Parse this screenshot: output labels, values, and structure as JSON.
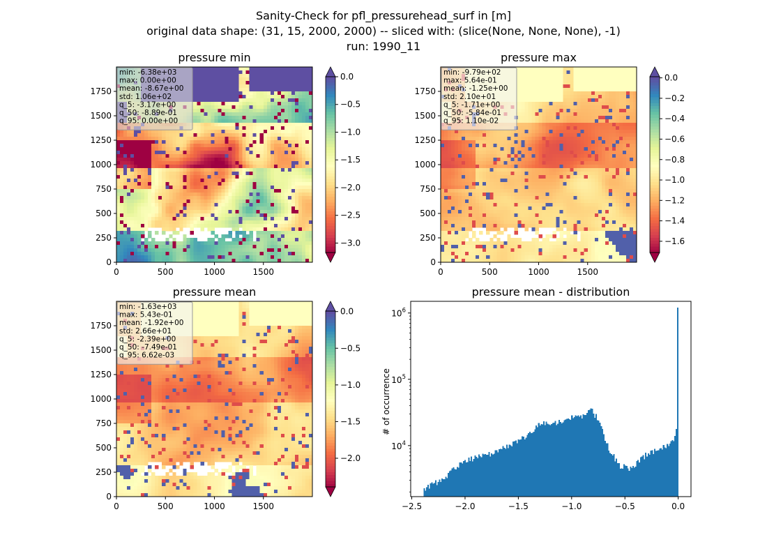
{
  "figure": {
    "title_lines": [
      "Sanity-Check for pfl_pressurehead_surf in [m]",
      "original data shape: (31, 15, 2000, 2000) -- sliced with: (slice(None, None, None), -1)",
      "run: 1990_11"
    ]
  },
  "chart_data": [
    {
      "type": "heatmap",
      "title": "pressure min",
      "x_ticks": [
        "0",
        "500",
        "1000",
        "1500"
      ],
      "x_tick_values": [
        0,
        500,
        1000,
        1500
      ],
      "y_ticks": [
        "0",
        "250",
        "500",
        "750",
        "1000",
        "1250",
        "1500",
        "1750"
      ],
      "y_tick_values": [
        0,
        250,
        500,
        750,
        1000,
        1250,
        1500,
        1750
      ],
      "xlim": [
        0,
        2000
      ],
      "ylim": [
        0,
        2000
      ],
      "colorbar": {
        "cmap": "Spectral",
        "range": [
          -3.17,
          0.0
        ],
        "ticks": [
          "0.0",
          "−0.5",
          "−1.0",
          "−1.5",
          "−2.0",
          "−2.5",
          "−3.0"
        ],
        "tick_values": [
          0.0,
          -0.5,
          -1.0,
          -1.5,
          -2.0,
          -2.5,
          -3.0
        ],
        "extend": "both"
      },
      "stats": [
        "min: -6.38e+03",
        "max: 0.00e+00",
        "mean: -8.67e+00",
        "std: 1.06e+02",
        "q_5: -3.17e+00",
        "q_50: -8.89e-01",
        "q_95: 0.00e+00"
      ]
    },
    {
      "type": "heatmap",
      "title": "pressure max",
      "x_ticks": [
        "0",
        "500",
        "1000",
        "1500"
      ],
      "x_tick_values": [
        0,
        500,
        1000,
        1500
      ],
      "y_ticks": [
        "0",
        "250",
        "500",
        "750",
        "1000",
        "1250",
        "1500",
        "1750"
      ],
      "y_tick_values": [
        0,
        250,
        500,
        750,
        1000,
        1250,
        1500,
        1750
      ],
      "xlim": [
        0,
        2000
      ],
      "ylim": [
        0,
        2000
      ],
      "colorbar": {
        "cmap": "Spectral",
        "range": [
          -1.71,
          0.011
        ],
        "ticks": [
          "0.0",
          "−0.2",
          "−0.4",
          "−0.6",
          "−0.8",
          "−1.0",
          "−1.2",
          "−1.4",
          "−1.6"
        ],
        "tick_values": [
          0.0,
          -0.2,
          -0.4,
          -0.6,
          -0.8,
          -1.0,
          -1.2,
          -1.4,
          -1.6
        ],
        "extend": "both"
      },
      "stats": [
        "min: -9.79e+02",
        "max: 5.64e-01",
        "mean: -1.25e+00",
        "std: 2.10e+01",
        "q_5: -1.71e+00",
        "q_50: -5.84e-01",
        "q_95: 1.10e-02"
      ]
    },
    {
      "type": "heatmap",
      "title": "pressure mean",
      "x_ticks": [
        "0",
        "500",
        "1000",
        "1500"
      ],
      "x_tick_values": [
        0,
        500,
        1000,
        1500
      ],
      "y_ticks": [
        "0",
        "250",
        "500",
        "750",
        "1000",
        "1250",
        "1500",
        "1750"
      ],
      "y_tick_values": [
        0,
        250,
        500,
        750,
        1000,
        1250,
        1500,
        1750
      ],
      "xlim": [
        0,
        2000
      ],
      "ylim": [
        0,
        2000
      ],
      "colorbar": {
        "cmap": "Spectral",
        "range": [
          -2.39,
          0.00662
        ],
        "ticks": [
          "0.0",
          "−0.5",
          "−1.0",
          "−1.5",
          "−2.0"
        ],
        "tick_values": [
          0.0,
          -0.5,
          -1.0,
          -1.5,
          -2.0
        ],
        "extend": "both"
      },
      "stats": [
        "min: -1.63e+03",
        "max: 5.43e-01",
        "mean: -1.92e+00",
        "std: 2.66e+01",
        "q_5: -2.39e+00",
        "q_50: -7.49e-01",
        "q_95: 6.62e-03"
      ]
    },
    {
      "type": "bar",
      "title": "pressure mean - distribution",
      "ylabel": "# of occurrence",
      "xlabel": "",
      "yscale": "log",
      "color": "#1f77b4",
      "xlim": [
        -2.51,
        0.12
      ],
      "ylim": [
        1700,
        1500000
      ],
      "x_ticks": [
        "−2.5",
        "−2.0",
        "−1.5",
        "−1.0",
        "−0.5",
        "0.0"
      ],
      "x_tick_values": [
        -2.5,
        -2.0,
        -1.5,
        -1.0,
        -0.5,
        0.0
      ],
      "y_ticks": [
        {
          "base": "10",
          "exp": "4",
          "value": 10000
        },
        {
          "base": "10",
          "exp": "5",
          "value": 100000
        },
        {
          "base": "10",
          "exp": "6",
          "value": 1000000
        }
      ],
      "profile": [
        {
          "x": -2.39,
          "y": 2200
        },
        {
          "x": -2.2,
          "y": 3200
        },
        {
          "x": -2.0,
          "y": 6000
        },
        {
          "x": -1.8,
          "y": 7200
        },
        {
          "x": -1.6,
          "y": 9500
        },
        {
          "x": -1.5,
          "y": 12000
        },
        {
          "x": -1.4,
          "y": 15000
        },
        {
          "x": -1.3,
          "y": 22000
        },
        {
          "x": -1.2,
          "y": 21000
        },
        {
          "x": -1.1,
          "y": 23000
        },
        {
          "x": -1.0,
          "y": 26000
        },
        {
          "x": -0.9,
          "y": 28000
        },
        {
          "x": -0.82,
          "y": 35000
        },
        {
          "x": -0.75,
          "y": 25000
        },
        {
          "x": -0.65,
          "y": 9000
        },
        {
          "x": -0.55,
          "y": 5000
        },
        {
          "x": -0.45,
          "y": 4600
        },
        {
          "x": -0.4,
          "y": 5200
        },
        {
          "x": -0.3,
          "y": 7200
        },
        {
          "x": -0.2,
          "y": 8500
        },
        {
          "x": -0.1,
          "y": 9800
        },
        {
          "x": -0.03,
          "y": 13000
        },
        {
          "x": -0.01,
          "y": 20000
        },
        {
          "x": 0.0,
          "y": 1200000
        }
      ]
    }
  ]
}
